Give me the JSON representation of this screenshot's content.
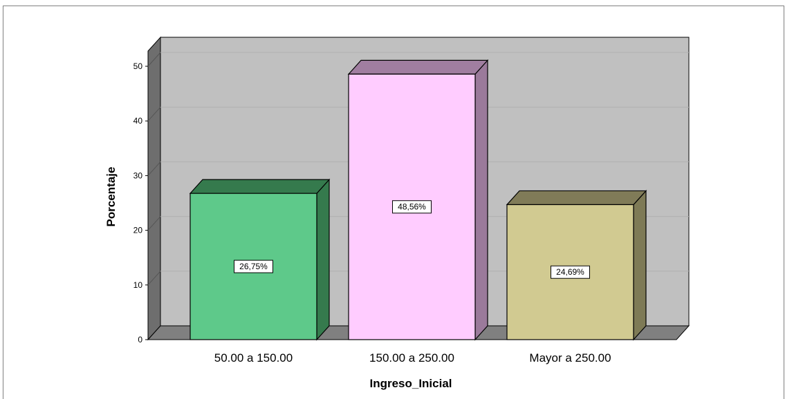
{
  "chart_data": {
    "type": "bar",
    "categories": [
      "50.00 a 150.00",
      "150.00 a 250.00",
      "Mayor a 250.00"
    ],
    "values": [
      26.75,
      48.56,
      24.69
    ],
    "data_labels": [
      "26,75%",
      "48,56%",
      "24,69%"
    ],
    "xlabel": "Ingreso_Inicial",
    "ylabel": "Porcentaje",
    "ylim": [
      0,
      50
    ],
    "yticks": [
      0,
      10,
      20,
      30,
      40,
      50
    ],
    "grid": true,
    "style": "3d",
    "colors": {
      "plot_background": "#c0c0c0",
      "floor": "#808080",
      "wall_side": "#6e6e6e",
      "gridline": "#b0b0b0",
      "bars": [
        {
          "front": "#5ec98a",
          "side": "#357a4d",
          "top": "#357a4d"
        },
        {
          "front": "#ffccff",
          "side": "#9b7a9b",
          "top": "#a07ea0"
        },
        {
          "front": "#d1ca91",
          "side": "#7e7a56",
          "top": "#807b58"
        }
      ]
    }
  }
}
